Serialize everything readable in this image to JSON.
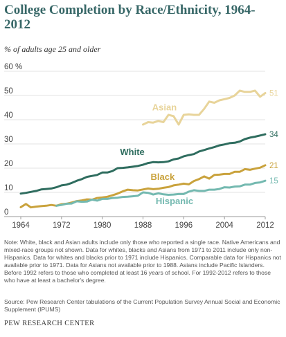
{
  "title": "College Completion by Race/Ethnicity, 1964-2012",
  "subtitle": "% of adults age 25 and older",
  "chart_data": {
    "type": "line",
    "title": "College Completion by Race/Ethnicity, 1964-2012",
    "ylabel": "% of adults age 25 and older",
    "xlim": [
      1964,
      2012
    ],
    "ylim": [
      0,
      60
    ],
    "y_unit_suffix": "%",
    "x_ticks": [
      1964,
      1972,
      1980,
      1988,
      1996,
      2004,
      2012
    ],
    "y_ticks": [
      0,
      10,
      20,
      30,
      40,
      50,
      60
    ],
    "grid": true,
    "series": [
      {
        "name": "White",
        "color": "#2f6d5f",
        "end_label": "34",
        "x": [
          1964,
          1965,
          1966,
          1967,
          1968,
          1969,
          1970,
          1971,
          1972,
          1973,
          1974,
          1975,
          1976,
          1977,
          1978,
          1979,
          1980,
          1981,
          1982,
          1983,
          1984,
          1985,
          1986,
          1987,
          1988,
          1989,
          1990,
          1991,
          1992,
          1993,
          1994,
          1995,
          1996,
          1997,
          1998,
          1999,
          2000,
          2001,
          2002,
          2003,
          2004,
          2005,
          2006,
          2007,
          2008,
          2009,
          2010,
          2011,
          2012
        ],
        "values": [
          9.5,
          9.8,
          10.2,
          10.6,
          11.2,
          11.4,
          11.6,
          12.1,
          12.9,
          13.2,
          13.9,
          14.8,
          15.5,
          16.4,
          16.8,
          17.2,
          18.2,
          18.2,
          18.8,
          20.0,
          20.1,
          20.3,
          20.6,
          20.9,
          21.4,
          22.1,
          22.5,
          22.4,
          22.5,
          22.8,
          23.6,
          24.0,
          24.9,
          25.4,
          25.8,
          26.9,
          27.5,
          28.1,
          28.7,
          29.4,
          29.8,
          30.3,
          30.5,
          31.0,
          32.0,
          32.6,
          33.0,
          33.5,
          34.0
        ]
      },
      {
        "name": "Black",
        "color": "#c9a23c",
        "end_label": "21",
        "x": [
          1964,
          1965,
          1966,
          1967,
          1968,
          1969,
          1970,
          1971,
          1972,
          1973,
          1974,
          1975,
          1976,
          1977,
          1978,
          1979,
          1980,
          1981,
          1982,
          1983,
          1984,
          1985,
          1986,
          1987,
          1988,
          1989,
          1990,
          1991,
          1992,
          1993,
          1994,
          1995,
          1996,
          1997,
          1998,
          1999,
          2000,
          2001,
          2002,
          2003,
          2004,
          2005,
          2006,
          2007,
          2008,
          2009,
          2010,
          2011,
          2012
        ],
        "values": [
          3.9,
          5.2,
          3.8,
          4.1,
          4.3,
          4.5,
          4.8,
          4.5,
          5.1,
          5.3,
          5.8,
          6.4,
          6.7,
          7.1,
          7.0,
          7.7,
          7.9,
          8.2,
          8.8,
          9.5,
          10.4,
          11.1,
          10.9,
          10.8,
          11.2,
          11.6,
          11.3,
          11.5,
          11.9,
          12.2,
          12.9,
          13.2,
          13.6,
          13.3,
          14.7,
          15.5,
          16.6,
          15.7,
          17.2,
          17.3,
          17.6,
          17.6,
          18.5,
          18.5,
          19.6,
          19.3,
          19.8,
          20.2,
          21.2
        ]
      },
      {
        "name": "Hispanic",
        "color": "#74b9b0",
        "end_label": "15",
        "x": [
          1971,
          1972,
          1973,
          1974,
          1975,
          1976,
          1977,
          1978,
          1979,
          1980,
          1981,
          1982,
          1983,
          1984,
          1985,
          1986,
          1987,
          1988,
          1989,
          1990,
          1991,
          1992,
          1993,
          1994,
          1995,
          1996,
          1997,
          1998,
          1999,
          2000,
          2001,
          2002,
          2003,
          2004,
          2005,
          2006,
          2007,
          2008,
          2009,
          2010,
          2011,
          2012
        ],
        "values": [
          4.5,
          4.8,
          5.3,
          5.4,
          6.3,
          6.1,
          6.2,
          7.0,
          6.6,
          7.3,
          7.3,
          7.7,
          7.8,
          8.1,
          8.2,
          8.4,
          8.6,
          10.0,
          9.8,
          9.1,
          9.6,
          9.2,
          9.0,
          9.1,
          9.3,
          9.3,
          10.3,
          10.9,
          10.6,
          10.6,
          11.1,
          11.1,
          11.4,
          12.1,
          12.0,
          12.4,
          12.5,
          13.2,
          13.2,
          13.9,
          14.1,
          14.8
        ]
      },
      {
        "name": "Asian",
        "color": "#e8d49a",
        "end_label": "51",
        "x": [
          1988,
          1989,
          1990,
          1991,
          1992,
          1993,
          1994,
          1995,
          1996,
          1997,
          1998,
          1999,
          2000,
          2001,
          2002,
          2003,
          2004,
          2005,
          2006,
          2007,
          2008,
          2009,
          2010,
          2011,
          2012
        ],
        "values": [
          38.0,
          39.0,
          38.8,
          39.5,
          39.0,
          42.0,
          41.5,
          38.0,
          42.0,
          42.2,
          42.0,
          42.0,
          44.5,
          47.5,
          47.0,
          48.0,
          48.5,
          49.0,
          50.0,
          52.0,
          51.5,
          51.5,
          52.0,
          49.5,
          51.0
        ]
      }
    ]
  },
  "notes": "Note: White, black and Asian adults include only those who reported a single race. Native Americans and mixed-race groups not shown. Data for whites, blacks and Asians from 1971 to 2011 include only non-Hispanics. Data for whites and blacks prior to 1971 include Hispanics. Comparable data for Hispanics not available prior to 1971. Data for Asians not available prior to 1988. Asians include Pacific Islanders. Before 1992 refers to those who completed at least 16 years of school. For 1992-2012 refers to those who have at least a bachelor's degree.",
  "source": "Source: Pew Research Center tabulations of the Current Population Survey Annual Social and Economic Supplement (IPUMS)",
  "org": "PEW RESEARCH CENTER"
}
